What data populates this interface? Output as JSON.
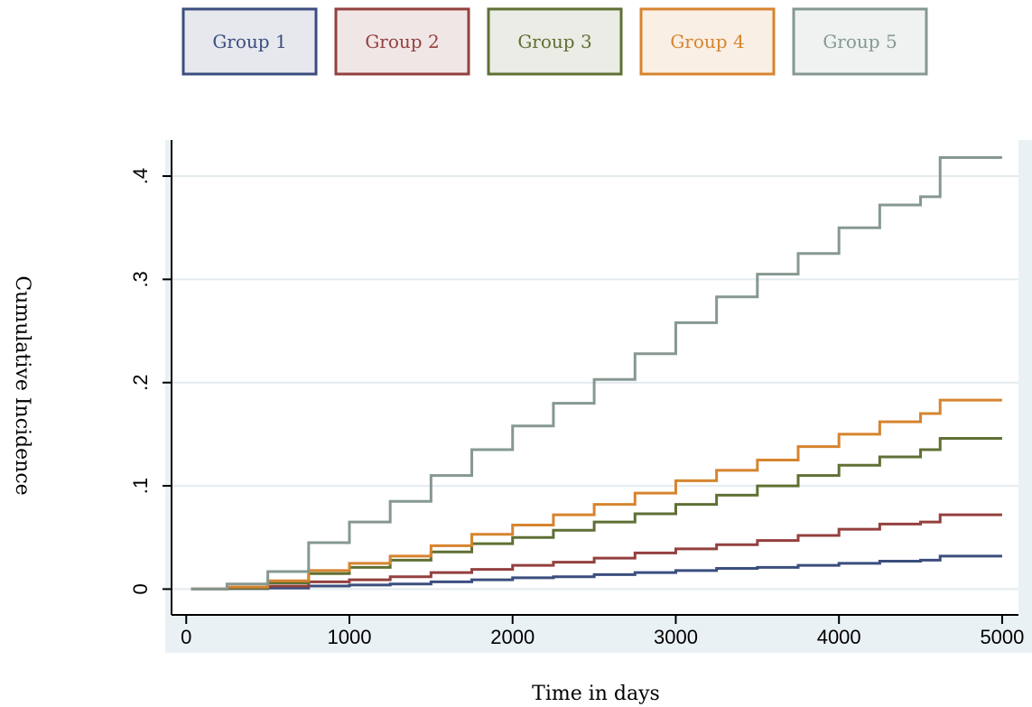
{
  "chart_data": {
    "type": "line",
    "step": true,
    "xlabel": "Time in days",
    "ylabel": "Cumulative Incidence",
    "x": [
      30,
      250,
      500,
      750,
      1000,
      1250,
      1500,
      1750,
      2000,
      2250,
      2500,
      2750,
      3000,
      3250,
      3500,
      3750,
      4000,
      4250,
      4500,
      4620,
      5000
    ],
    "series": [
      {
        "name": "Group 1",
        "color": "#3b4e7e",
        "values": [
          0,
          0.0005,
          0.001,
          0.003,
          0.004,
          0.005,
          0.007,
          0.009,
          0.011,
          0.012,
          0.014,
          0.016,
          0.018,
          0.02,
          0.021,
          0.023,
          0.025,
          0.027,
          0.028,
          0.032,
          0.032
        ]
      },
      {
        "name": "Group 2",
        "color": "#93403f",
        "values": [
          0,
          0.001,
          0.003,
          0.007,
          0.009,
          0.012,
          0.016,
          0.019,
          0.023,
          0.026,
          0.03,
          0.035,
          0.039,
          0.043,
          0.047,
          0.052,
          0.058,
          0.063,
          0.065,
          0.072,
          0.072
        ]
      },
      {
        "name": "Group 3",
        "color": "#5f7034",
        "values": [
          0,
          0.001,
          0.006,
          0.015,
          0.021,
          0.028,
          0.036,
          0.044,
          0.05,
          0.057,
          0.065,
          0.073,
          0.082,
          0.091,
          0.1,
          0.11,
          0.12,
          0.128,
          0.135,
          0.146,
          0.146
        ]
      },
      {
        "name": "Group 4",
        "color": "#d6842e",
        "values": [
          0,
          0.002,
          0.008,
          0.018,
          0.025,
          0.032,
          0.042,
          0.053,
          0.062,
          0.072,
          0.082,
          0.093,
          0.105,
          0.115,
          0.125,
          0.138,
          0.15,
          0.162,
          0.17,
          0.183,
          0.183
        ]
      },
      {
        "name": "Group 5",
        "color": "#869891",
        "values": [
          0,
          0.005,
          0.017,
          0.045,
          0.065,
          0.085,
          0.11,
          0.135,
          0.158,
          0.18,
          0.203,
          0.228,
          0.258,
          0.283,
          0.305,
          0.325,
          0.35,
          0.372,
          0.38,
          0.418,
          0.418
        ]
      }
    ],
    "xlim": [
      -90,
      5100
    ],
    "xticks": [
      0,
      1000,
      2000,
      3000,
      4000,
      5000
    ],
    "ylim": [
      -0.025,
      0.435
    ],
    "yticks": [
      0,
      {
        "value": 0.1,
        "label": ".1"
      },
      {
        "value": 0.2,
        "label": ".2"
      },
      {
        "value": 0.3,
        "label": ".3"
      },
      {
        "value": 0.4,
        "label": ".4"
      }
    ],
    "grid": true,
    "legend": "top"
  }
}
